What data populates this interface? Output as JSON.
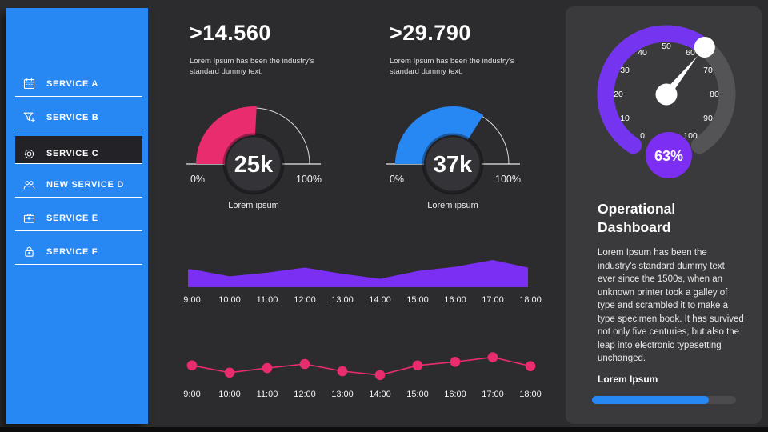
{
  "page": {
    "bg_color": "#2c2c2e",
    "card_color": "#3a3a3c",
    "accent_blue": "#2787f3",
    "accent_pink": "#e92c6d",
    "accent_purple": "#7a2ff2"
  },
  "sidebar": {
    "items": [
      {
        "label": "SERVICE A",
        "icon": "calendar-icon",
        "active": false
      },
      {
        "label": "SERVICE B",
        "icon": "filter-add-icon",
        "active": false
      },
      {
        "label": "SERVICE C",
        "icon": "gear-icon",
        "active": true
      },
      {
        "label": "NEW SERVICE D",
        "icon": "users-icon",
        "active": false
      },
      {
        "label": "SERVICE E",
        "icon": "briefcase-icon",
        "active": false
      },
      {
        "label": "SERVICE F",
        "icon": "lock-icon",
        "active": false
      }
    ]
  },
  "kpis": [
    {
      "value": ">14.560",
      "description": "Lorem Ipsum has been the industry's standard dummy text."
    },
    {
      "value": ">29.790",
      "description": "Lorem Ipsum has been the industry's standard dummy text."
    }
  ],
  "gauges": [
    {
      "value_label": "25k",
      "min_label": "0%",
      "max_label": "100%",
      "caption": "Lorem ipsum",
      "color": "#e92c6d",
      "sweep_deg": 93
    },
    {
      "value_label": "37k",
      "min_label": "0%",
      "max_label": "100%",
      "caption": "Lorem ipsum",
      "color": "#2787f3",
      "sweep_deg": 122
    }
  ],
  "chart_data": [
    {
      "type": "area",
      "x": [
        "9:00",
        "10:00",
        "11:00",
        "12:00",
        "13:00",
        "14:00",
        "15:00",
        "16:00",
        "17:00",
        "18:00"
      ],
      "values": [
        64,
        39,
        52,
        70,
        48,
        30,
        58,
        73,
        97,
        70
      ],
      "ylim": [
        0,
        100
      ],
      "color": "#7a2ff2",
      "title": "",
      "xlabel": "",
      "ylabel": ""
    },
    {
      "type": "line",
      "x": [
        "9:00",
        "10:00",
        "11:00",
        "12:00",
        "13:00",
        "14:00",
        "15:00",
        "16:00",
        "17:00",
        "18:00"
      ],
      "values": [
        64,
        34,
        53,
        70,
        40,
        24,
        64,
        79,
        98,
        61
      ],
      "ylim": [
        0,
        100
      ],
      "color": "#e92c6d",
      "title": "",
      "xlabel": "",
      "ylabel": ""
    }
  ],
  "right_panel": {
    "speedometer": {
      "value": 63,
      "value_label": "63%",
      "ticks": [
        "0",
        "10",
        "20",
        "30",
        "40",
        "50",
        "60",
        "70",
        "80",
        "90",
        "100"
      ],
      "arc_color": "#7434f0",
      "track_color": "#545457",
      "badge_color": "#7c2ff2"
    },
    "heading": "Operational Dashboard",
    "body": "Lorem Ipsum has been the industry's standard dummy text ever since the 1500s, when an unknown printer took a galley of type and scrambled it to make a type specimen book. It has survived not only five centuries, but also the leap into electronic typesetting unchanged.",
    "progress": {
      "label": "Lorem Ipsum",
      "percent": 81,
      "color": "#2787f3"
    }
  }
}
